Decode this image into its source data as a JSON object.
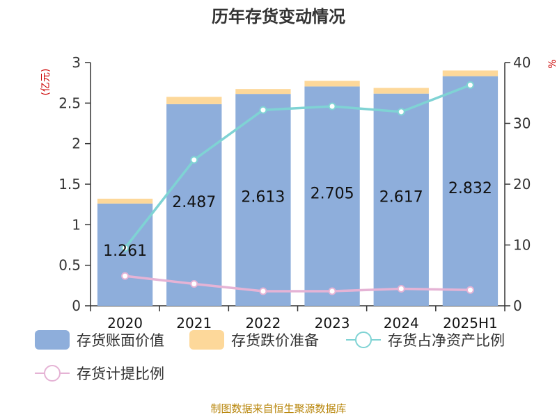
{
  "chart_data": {
    "type": "bar",
    "title": "历年存货变动情况",
    "categories": [
      "2020",
      "2021",
      "2022",
      "2023",
      "2024",
      "2025H1"
    ],
    "y_left": {
      "unit": "(亿元)",
      "range": [
        0,
        3
      ],
      "ticks": [
        "0",
        "0.5",
        "1",
        "1.5",
        "2",
        "2.5",
        "3"
      ]
    },
    "y_right": {
      "unit": "%",
      "range": [
        0,
        40
      ],
      "ticks": [
        "0",
        "10",
        "20",
        "30",
        "40"
      ]
    },
    "series": [
      {
        "name": "存货账面价值",
        "kind": "bar",
        "axis": "left",
        "color": "#8eaedb",
        "values": [
          1.261,
          2.487,
          2.613,
          2.705,
          2.617,
          2.832
        ],
        "labels": [
          "1.261",
          "2.487",
          "2.613",
          "2.705",
          "2.617",
          "2.832"
        ]
      },
      {
        "name": "存货跌价准备",
        "kind": "bar-stacked",
        "axis": "left",
        "color": "#fdd89a",
        "values": [
          0.06,
          0.09,
          0.06,
          0.07,
          0.07,
          0.07
        ]
      },
      {
        "name": "存货占净资产比例",
        "kind": "line",
        "axis": "right",
        "color": "#7fd3d4",
        "values": [
          9.5,
          24.0,
          32.2,
          32.8,
          31.9,
          36.3
        ]
      },
      {
        "name": "存货计提比例",
        "kind": "line",
        "axis": "right",
        "color": "#e5b3d5",
        "values": [
          4.9,
          3.6,
          2.4,
          2.4,
          2.8,
          2.6
        ]
      }
    ],
    "legend_position": "bottom",
    "grid": false
  },
  "source": "制图数据来自恒生聚源数据库"
}
